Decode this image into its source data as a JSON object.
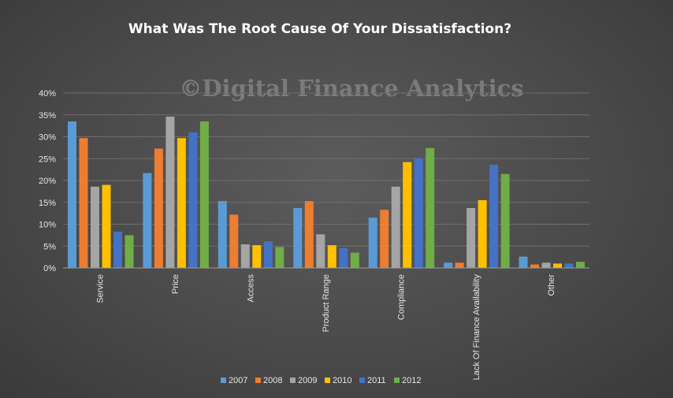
{
  "chart_data": {
    "type": "bar",
    "title": "What Was The Root Cause Of Your Dissatisfaction?",
    "watermark": "©Digital Finance Analytics",
    "xlabel": "",
    "ylabel": "",
    "ylim": [
      0,
      40
    ],
    "yticks": [
      "0%",
      "5%",
      "10%",
      "15%",
      "20%",
      "25%",
      "30%",
      "35%",
      "40%"
    ],
    "grid": true,
    "legend_position": "bottom",
    "categories": [
      "Service",
      "Price",
      "Access",
      "Product Range",
      "Compliance",
      "Lack Of Finance Availability",
      "Other"
    ],
    "series": [
      {
        "name": "2007",
        "color": "#5b9bd5",
        "values": [
          33.5,
          21.7,
          15.3,
          13.7,
          11.5,
          1.2,
          2.6
        ]
      },
      {
        "name": "2008",
        "color": "#ed7d31",
        "values": [
          29.7,
          27.3,
          12.2,
          15.3,
          13.3,
          1.2,
          0.8
        ]
      },
      {
        "name": "2009",
        "color": "#a5a5a5",
        "values": [
          18.6,
          34.6,
          5.4,
          7.7,
          18.6,
          13.7,
          1.2
        ]
      },
      {
        "name": "2010",
        "color": "#ffc000",
        "values": [
          19.0,
          29.7,
          5.2,
          5.2,
          24.2,
          15.5,
          1.0
        ]
      },
      {
        "name": "2011",
        "color": "#4472c4",
        "values": [
          8.3,
          31.0,
          6.1,
          4.5,
          25.1,
          23.6,
          1.0
        ]
      },
      {
        "name": "2012",
        "color": "#70ad47",
        "values": [
          7.5,
          33.5,
          4.8,
          3.5,
          27.4,
          21.5,
          1.4
        ]
      }
    ]
  }
}
